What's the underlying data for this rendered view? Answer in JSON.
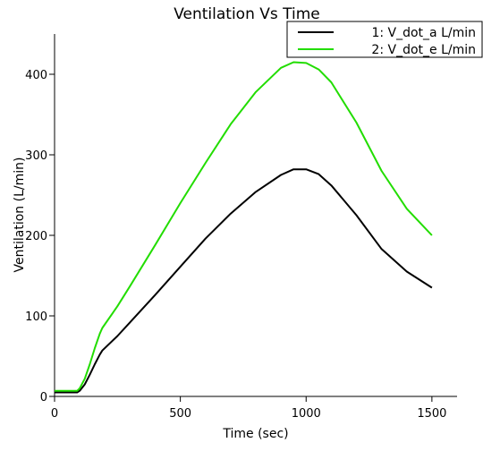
{
  "chart_data": {
    "type": "line",
    "title": "Ventilation Vs Time",
    "xlabel": "Time (sec)",
    "ylabel": "Ventilation (L/min)",
    "xlim": [
      0,
      1600
    ],
    "ylim": [
      0,
      450
    ],
    "xticks": [
      "0",
      "500",
      "1000",
      "1500"
    ],
    "xtick_values": [
      0,
      500,
      1000,
      1500
    ],
    "yticks": [
      "0",
      "100",
      "200",
      "300",
      "400"
    ],
    "ytick_values": [
      0,
      100,
      200,
      300,
      400
    ],
    "grid": false,
    "legend_position": "top-right",
    "series": [
      {
        "name": "1: V_dot_a L/min",
        "color": "#000000",
        "x": [
          0,
          90,
          100,
          120,
          140,
          160,
          180,
          190,
          250,
          300,
          400,
          500,
          600,
          700,
          800,
          900,
          950,
          1000,
          1050,
          1100,
          1200,
          1300,
          1400,
          1500
        ],
        "y": [
          5,
          5,
          7,
          15,
          27,
          40,
          52,
          57,
          75,
          92,
          126,
          161,
          196,
          227,
          254,
          275,
          282,
          282,
          276,
          262,
          225,
          183,
          155,
          135
        ]
      },
      {
        "name": "2: V_dot_e L/min",
        "color": "#22dd00",
        "x": [
          0,
          90,
          100,
          120,
          140,
          160,
          180,
          190,
          250,
          300,
          400,
          500,
          600,
          700,
          800,
          900,
          950,
          1000,
          1050,
          1100,
          1200,
          1300,
          1400,
          1500
        ],
        "y": [
          7,
          7,
          10,
          22,
          40,
          60,
          78,
          85,
          112,
          137,
          188,
          240,
          290,
          338,
          378,
          408,
          415,
          414,
          406,
          390,
          340,
          280,
          233,
          200
        ]
      }
    ]
  }
}
